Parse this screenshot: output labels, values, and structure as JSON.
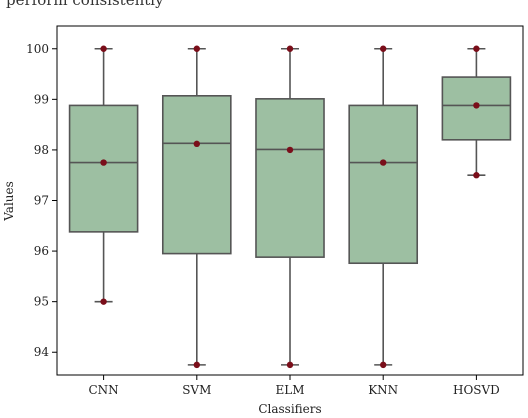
{
  "top_strip_text": "perform consistently",
  "chart_data": {
    "type": "box",
    "xlabel": "Classifiers",
    "ylabel": "Values",
    "ylim": [
      93.55,
      100.45
    ],
    "yticks": [
      94,
      95,
      96,
      97,
      98,
      99,
      100
    ],
    "categories": [
      "CNN",
      "SVM",
      "ELM",
      "KNN",
      "HOSVD"
    ],
    "boxes": [
      {
        "category": "CNN",
        "min": 95.0,
        "q1": 96.38,
        "median": 97.75,
        "q3": 98.88,
        "max": 100.0,
        "mean": 97.75
      },
      {
        "category": "SVM",
        "min": 93.75,
        "q1": 95.95,
        "median": 98.13,
        "q3": 99.07,
        "max": 100.0,
        "mean": 98.12
      },
      {
        "category": "ELM",
        "min": 93.75,
        "q1": 95.88,
        "median": 98.01,
        "q3": 99.01,
        "max": 100.0,
        "mean": 98.0
      },
      {
        "category": "KNN",
        "min": 93.75,
        "q1": 95.76,
        "median": 97.75,
        "q3": 98.88,
        "max": 100.0,
        "mean": 97.75
      },
      {
        "category": "HOSVD",
        "min": 97.5,
        "q1": 98.2,
        "median": 98.88,
        "q3": 99.44,
        "max": 100.0,
        "mean": 98.88
      }
    ],
    "colors": {
      "box_fill": "#9dbfa2",
      "box_edge": "#555555",
      "point": "#7a0e1a"
    }
  }
}
